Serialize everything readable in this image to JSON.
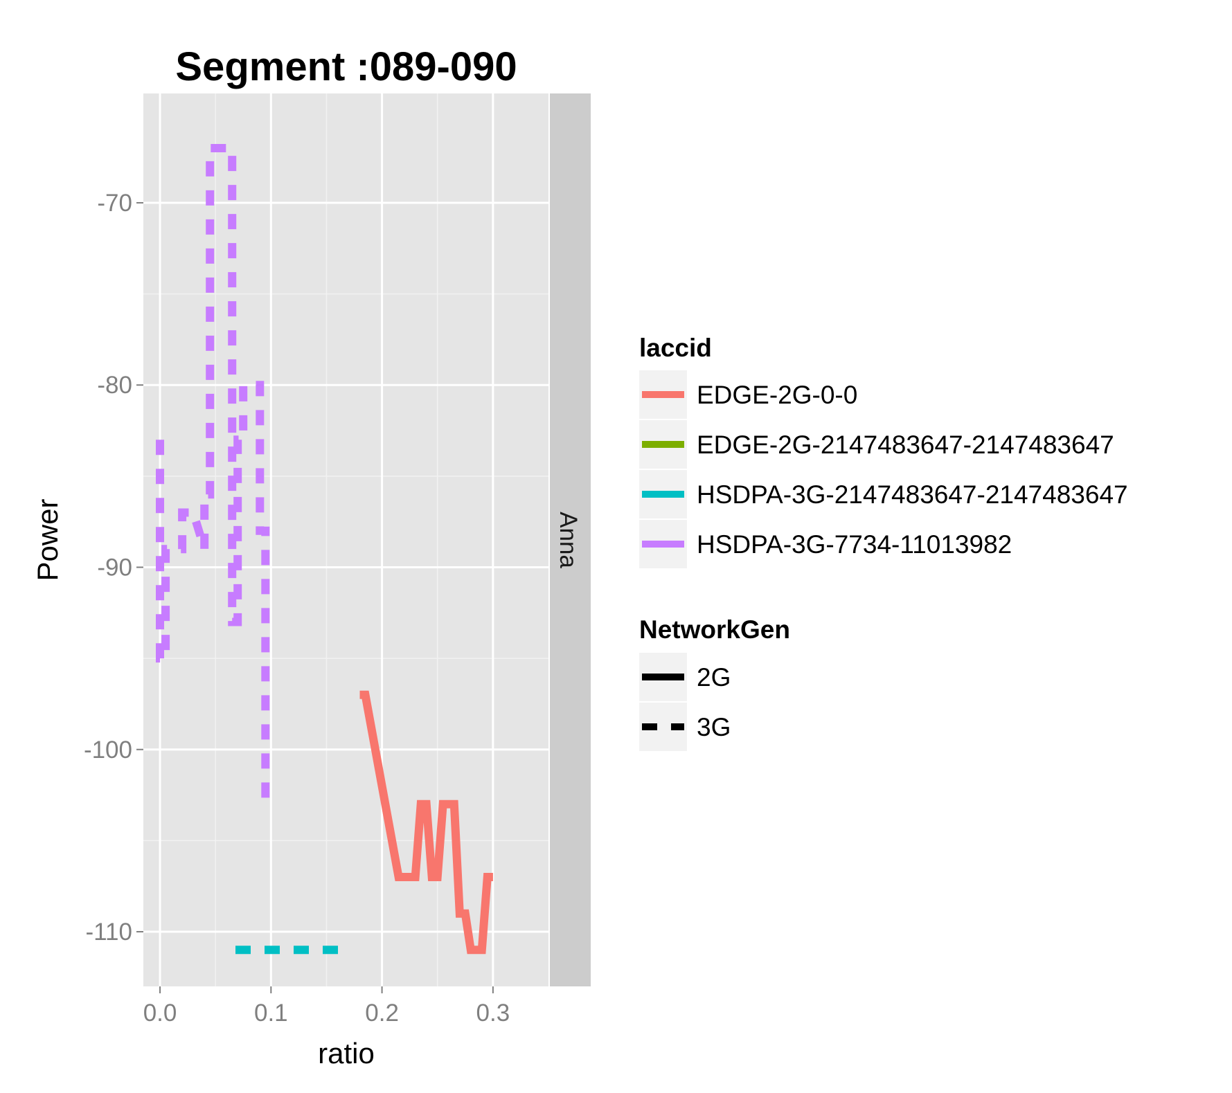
{
  "chart_data": {
    "type": "line",
    "title": "Segment :089-090",
    "xlabel": "ratio",
    "ylabel": "Power",
    "facet_label": "Anna",
    "xlim": [
      -0.015,
      0.35
    ],
    "ylim": [
      -113,
      -64
    ],
    "x_ticks": [
      0.0,
      0.1,
      0.2,
      0.3
    ],
    "x_tick_labels": [
      "0.0",
      "0.1",
      "0.2",
      "0.3"
    ],
    "y_ticks": [
      -70,
      -80,
      -90,
      -100,
      -110
    ],
    "y_tick_labels": [
      "-70",
      "-80",
      "-90",
      "-100",
      "-110"
    ],
    "grid": true,
    "legend_position": "right",
    "legends": [
      {
        "title": "laccid",
        "entries": [
          {
            "label": "EDGE-2G-0-0",
            "color": "#F8766D"
          },
          {
            "label": "EDGE-2G-2147483647-2147483647",
            "color": "#7CAE00"
          },
          {
            "label": "HSDPA-3G-2147483647-2147483647",
            "color": "#00BFC4"
          },
          {
            "label": "HSDPA-3G-7734-11013982",
            "color": "#C77CFF"
          }
        ]
      },
      {
        "title": "NetworkGen",
        "entries": [
          {
            "label": "2G",
            "linetype": "solid"
          },
          {
            "label": "3G",
            "linetype": "dashed"
          }
        ]
      }
    ],
    "series": [
      {
        "name": "HSDPA-3G-7734-11013982",
        "network": "3G",
        "color": "#C77CFF",
        "x": [
          0.0,
          0.0,
          0.005,
          0.005,
          0.01,
          0.01,
          0.02,
          0.02,
          0.03,
          0.04,
          0.04,
          0.045,
          0.045,
          0.05,
          0.055,
          0.055,
          0.06,
          0.06,
          0.065,
          0.065,
          0.07,
          0.07,
          0.075,
          0.075,
          0.08,
          0.08,
          0.085,
          0.085,
          0.09,
          0.09,
          0.095,
          0.095,
          0.1
        ],
        "y": [
          -83,
          -95,
          -95,
          -89,
          -89,
          -89,
          -89,
          -87,
          -87,
          -89,
          -86,
          -86,
          -67,
          -67,
          -67,
          -67,
          -67,
          -67,
          -67,
          -93,
          -93,
          -83,
          -83,
          -80,
          -80,
          -80,
          -80,
          -80,
          -80,
          -88,
          -88,
          -103,
          -103
        ]
      },
      {
        "name": "HSDPA-3G-2147483647-2147483647",
        "network": "3G",
        "color": "#00BFC4",
        "x": [
          0.068,
          0.165
        ],
        "y": [
          -111,
          -111
        ]
      },
      {
        "name": "EDGE-2G-0-0",
        "network": "2G",
        "color": "#F8766D",
        "x": [
          0.18,
          0.185,
          0.215,
          0.23,
          0.235,
          0.24,
          0.245,
          0.25,
          0.255,
          0.26,
          0.265,
          0.27,
          0.275,
          0.28,
          0.285,
          0.29,
          0.295,
          0.3
        ],
        "y": [
          -97,
          -97,
          -107,
          -107,
          -103,
          -103,
          -107,
          -107,
          -103,
          -103,
          -103,
          -109,
          -109,
          -111,
          -111,
          -111,
          -107,
          -107
        ]
      }
    ]
  }
}
